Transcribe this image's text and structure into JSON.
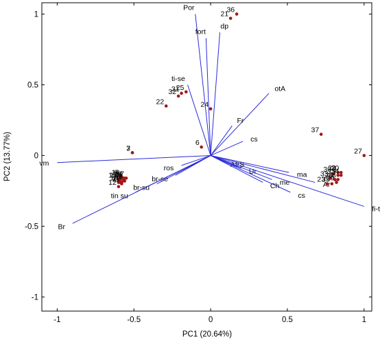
{
  "chart_data": {
    "type": "scatter",
    "subtype": "pca-biplot",
    "xlabel": "PC1 (20.64%)",
    "ylabel": "PC2 (13.77%)",
    "xlim": [
      -1.1,
      1.05
    ],
    "ylim": [
      -1.1,
      1.08
    ],
    "xticks": [
      -1,
      -0.5,
      0,
      0.5,
      1
    ],
    "xtick_labels": [
      "-1",
      "-0.5",
      "0",
      "0.5",
      "1"
    ],
    "yticks": [
      -1,
      -0.5,
      0,
      0.5,
      1
    ],
    "ytick_labels": [
      "-1",
      "-0.5",
      "0",
      "0.5",
      "1"
    ],
    "grid": false,
    "colors": {
      "vector": "#2b2bd9",
      "point": "#a01818",
      "axis": "#000000"
    },
    "vectors": [
      {
        "label": "Por",
        "x": -0.1,
        "y": 1.0
      },
      {
        "label": "fort",
        "x": -0.03,
        "y": 0.83
      },
      {
        "label": "dp",
        "x": 0.06,
        "y": 0.87
      },
      {
        "label": "ti-se",
        "x": -0.15,
        "y": 0.5
      },
      {
        "label": "otA",
        "x": 0.38,
        "y": 0.44
      },
      {
        "label": "Fr",
        "x": 0.14,
        "y": 0.21
      },
      {
        "label": "cs",
        "x": 0.21,
        "y": 0.1
      },
      {
        "label": "vm",
        "x": -1.0,
        "y": -0.05
      },
      {
        "label": "ros",
        "x": -0.19,
        "y": -0.07
      },
      {
        "label": "br-se",
        "x": -0.23,
        "y": -0.14
      },
      {
        "label": "br-su",
        "x": -0.35,
        "y": -0.2
      },
      {
        "label": "tin su",
        "x": -0.49,
        "y": -0.26
      },
      {
        "label": "Br",
        "x": -0.9,
        "y": -0.48
      },
      {
        "label": "ÁfrS",
        "x": 0.08,
        "y": -0.04
      },
      {
        "label": "Ur",
        "x": 0.2,
        "y": -0.09
      },
      {
        "label": "ma",
        "x": 0.51,
        "y": -0.12
      },
      {
        "label": "me",
        "x": 0.4,
        "y": -0.17
      },
      {
        "label": "Ch",
        "x": 0.34,
        "y": -0.19
      },
      {
        "label": "cs",
        "x": 0.52,
        "y": -0.26
      },
      {
        "label": "Ar",
        "x": 0.68,
        "y": -0.19
      },
      {
        "label": "fi-ti",
        "x": 1.0,
        "y": -0.36
      }
    ],
    "points": [
      {
        "label": "36",
        "x": 0.17,
        "y": 1.0
      },
      {
        "label": "21",
        "x": 0.13,
        "y": 0.97
      },
      {
        "label": "31",
        "x": -0.19,
        "y": 0.44
      },
      {
        "label": "25",
        "x": -0.16,
        "y": 0.45
      },
      {
        "label": "32",
        "x": -0.21,
        "y": 0.42
      },
      {
        "label": "22",
        "x": -0.29,
        "y": 0.35
      },
      {
        "label": "24",
        "x": 0.0,
        "y": 0.33
      },
      {
        "label": "6",
        "x": -0.06,
        "y": 0.06
      },
      {
        "label": "7",
        "x": -0.51,
        "y": 0.02
      },
      {
        "label": "3",
        "x": -0.51,
        "y": 0.02
      },
      {
        "label": "37",
        "x": 0.72,
        "y": 0.15
      },
      {
        "label": "27",
        "x": 1.0,
        "y": 0.0
      },
      {
        "label": "8",
        "x": -0.59,
        "y": -0.15
      },
      {
        "label": "16",
        "x": -0.58,
        "y": -0.15
      },
      {
        "label": "10",
        "x": -0.57,
        "y": -0.16
      },
      {
        "label": "4",
        "x": -0.56,
        "y": -0.16
      },
      {
        "label": "17",
        "x": -0.55,
        "y": -0.16
      },
      {
        "label": "15",
        "x": -0.6,
        "y": -0.17
      },
      {
        "label": "14",
        "x": -0.59,
        "y": -0.17
      },
      {
        "label": "9",
        "x": -0.57,
        "y": -0.17
      },
      {
        "label": "2",
        "x": -0.6,
        "y": -0.19
      },
      {
        "label": "18",
        "x": -0.59,
        "y": -0.19
      },
      {
        "label": "5",
        "x": -0.57,
        "y": -0.18
      },
      {
        "label": "13",
        "x": -0.56,
        "y": -0.18
      },
      {
        "label": "1",
        "x": -0.58,
        "y": -0.19
      },
      {
        "label": "11",
        "x": -0.58,
        "y": -0.2
      },
      {
        "label": "12",
        "x": -0.6,
        "y": -0.22
      },
      {
        "label": "28",
        "x": 0.83,
        "y": -0.12
      },
      {
        "label": "20",
        "x": 0.85,
        "y": -0.12
      },
      {
        "label": "30",
        "x": 0.8,
        "y": -0.13
      },
      {
        "label": "19",
        "x": 0.83,
        "y": -0.14
      },
      {
        "label": "34",
        "x": 0.85,
        "y": -0.14
      },
      {
        "label": "33",
        "x": 0.78,
        "y": -0.16
      },
      {
        "label": "26",
        "x": 0.81,
        "y": -0.17
      },
      {
        "label": "38",
        "x": 0.83,
        "y": -0.17
      },
      {
        "label": "29",
        "x": 0.82,
        "y": -0.19
      },
      {
        "label": "35",
        "x": 0.79,
        "y": -0.2
      },
      {
        "label": "23",
        "x": 0.76,
        "y": -0.2
      }
    ]
  }
}
